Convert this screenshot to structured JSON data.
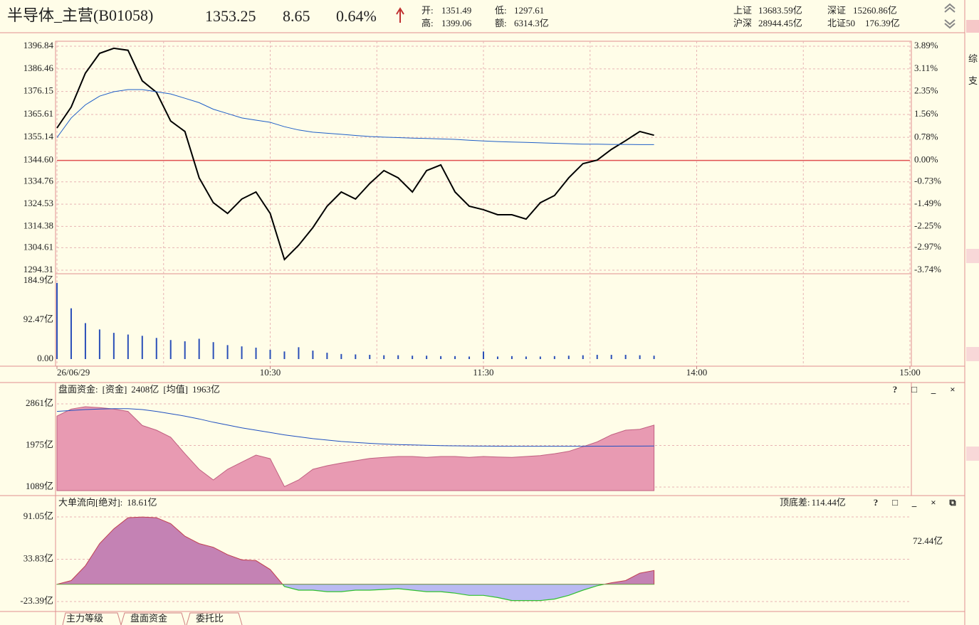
{
  "header": {
    "name": "半导体_主营(B01058)",
    "price": "1353.25",
    "change": "8.65",
    "pct": "0.64%",
    "open_label": "开:",
    "open": "1351.49",
    "low_label": "低:",
    "low": "1297.61",
    "high_label": "高:",
    "high": "1399.06",
    "amount_label": "额:",
    "amount": "6314.3亿",
    "indices": [
      {
        "name": "上证",
        "value": "13683.59亿"
      },
      {
        "name": "深证",
        "value": "15260.86亿"
      },
      {
        "name": "沪深",
        "value": "28944.45亿"
      },
      {
        "name": "北证50",
        "value": "176.39亿"
      }
    ]
  },
  "sidebar": [
    "综",
    "支"
  ],
  "tabs": [
    "主力等级",
    "盘面资金",
    "委托比"
  ],
  "chart_data": [
    {
      "type": "line",
      "x": [
        0,
        4,
        8,
        12,
        16,
        20,
        24,
        28,
        32,
        36,
        40,
        44,
        48,
        52,
        56,
        60,
        64,
        68,
        72,
        76,
        80,
        84,
        88,
        92,
        96,
        100,
        104,
        108,
        112,
        116,
        120,
        124,
        128,
        132,
        136,
        140,
        144,
        148,
        152,
        156,
        160,
        164,
        168
      ],
      "xlim": [
        0,
        240
      ],
      "xticks": [
        {
          "value": 0,
          "label": "26/06/29"
        },
        {
          "value": 60,
          "label": "10:30"
        },
        {
          "value": 120,
          "label": "11:30"
        },
        {
          "value": 180,
          "label": "14:00"
        },
        {
          "value": 240,
          "label": "15:00"
        }
      ],
      "xminor_ticks": [
        30,
        90,
        150,
        210
      ],
      "series": [
        {
          "color": "#000000",
          "values": [
            1359.4,
            1369,
            1384.5,
            1393.6,
            1395.9,
            1395.0,
            1381,
            1375.7,
            1362.6,
            1357.8,
            1336.6,
            1325.2,
            1320.3,
            1326.9,
            1330.1,
            1320.3,
            1299.2,
            1305.7,
            1313.8,
            1323.6,
            1330.1,
            1326.9,
            1334.0,
            1339.9,
            1336.6,
            1330.1,
            1339.9,
            1342.5,
            1330.1,
            1323.6,
            1322.0,
            1319.7,
            1319.7,
            1317.7,
            1325.2,
            1328.5,
            1336.6,
            1343.1,
            1344.7,
            1349.6,
            1353.6,
            1357.8,
            1356.1
          ]
        },
        {
          "color": "#1f5fc8",
          "values": [
            1355,
            1364,
            1370,
            1374,
            1376,
            1377,
            1377,
            1376,
            1375,
            1373,
            1371,
            1368,
            1366,
            1364,
            1363,
            1362,
            1360,
            1358.5,
            1357.5,
            1357,
            1356.5,
            1356,
            1355.5,
            1355.2,
            1355,
            1354.8,
            1354.6,
            1354.4,
            1354.2,
            1353.8,
            1353.5,
            1353.2,
            1353,
            1352.8,
            1352.6,
            1352.4,
            1352.2,
            1352,
            1352,
            1351.9,
            1351.9,
            1351.8,
            1351.8
          ]
        }
      ],
      "ylim": [
        1294.31,
        1396.84
      ],
      "yticks": [
        1396.84,
        1386.46,
        1376.15,
        1365.61,
        1355.14,
        {
          "value": 1344.6,
          "label": "1344.60"
        },
        1334.76,
        1324.53,
        1314.38,
        1304.61,
        1294.31
      ],
      "y2lim": [
        -3.74,
        3.89
      ],
      "y2ticks": [
        {
          "value": 3.89,
          "label": "3.89%"
        },
        {
          "value": 3.11,
          "label": "3.11%"
        },
        {
          "value": 2.35,
          "label": "2.35%"
        },
        {
          "value": 1.56,
          "label": "1.56%"
        },
        {
          "value": 0.78,
          "label": "0.78%"
        },
        {
          "value": 0,
          "label": "0.00%"
        },
        {
          "value": -0.73,
          "label": "-0.73%"
        },
        {
          "value": -1.49,
          "label": "-1.49%"
        },
        {
          "value": -2.25,
          "label": "-2.25%"
        },
        {
          "value": -2.97,
          "label": "-2.97%"
        },
        {
          "value": -3.74,
          "label": "-3.74%"
        }
      ],
      "grid": true,
      "axis_color": "#7a1f1f",
      "axis2_color": "#a03030"
    },
    {
      "type": "bar",
      "x": [
        0,
        4,
        8,
        12,
        16,
        20,
        24,
        28,
        32,
        36,
        40,
        44,
        48,
        52,
        56,
        60,
        64,
        68,
        72,
        76,
        80,
        84,
        88,
        92,
        96,
        100,
        104,
        108,
        112,
        116,
        120,
        124,
        128,
        132,
        136,
        140,
        144,
        148,
        152,
        156,
        160,
        164,
        168
      ],
      "xlim": [
        0,
        240
      ],
      "values": [
        180,
        120,
        85,
        70,
        62,
        58,
        55,
        50,
        45,
        42,
        48,
        40,
        33,
        30,
        27,
        22,
        18,
        28,
        20,
        15,
        12,
        11,
        10,
        9,
        9,
        8,
        8,
        7,
        7,
        6,
        18,
        6,
        7,
        6,
        6,
        7,
        8,
        9,
        10,
        10,
        10,
        9,
        8
      ],
      "color": "#2a4fb8",
      "ylim": [
        0,
        184.9
      ],
      "yticks": [
        {
          "value": 184.9,
          "label": "184.9亿"
        },
        {
          "value": 92.47,
          "label": "92.47亿"
        },
        {
          "value": 0,
          "label": "0.00"
        }
      ],
      "grid": false,
      "axis_color": "#2060c0"
    },
    {
      "type": "area",
      "title": "盘面资金:",
      "annotations": [
        {
          "text": "[资金]",
          "color": "#c8407a"
        },
        {
          "text": "2408亿",
          "color": "#222222"
        },
        {
          "text": "[均值]",
          "color": "#2050c0"
        },
        {
          "text": "1963亿",
          "color": "#222222"
        }
      ],
      "controls": [
        "?",
        "□",
        "_",
        "×"
      ],
      "x": [
        0,
        4,
        8,
        12,
        16,
        20,
        24,
        28,
        32,
        36,
        40,
        44,
        48,
        52,
        56,
        60,
        64,
        68,
        72,
        76,
        80,
        84,
        88,
        92,
        96,
        100,
        104,
        108,
        112,
        116,
        120,
        124,
        128,
        132,
        136,
        140,
        144,
        148,
        152,
        156,
        160,
        164,
        168
      ],
      "xlim": [
        0,
        240
      ],
      "series": [
        {
          "color": "#c06080",
          "fill": "#e89ab2",
          "values": [
            2600,
            2750,
            2800,
            2780,
            2750,
            2700,
            2400,
            2300,
            2150,
            1800,
            1467,
            1240,
            1467,
            1620,
            1770,
            1694,
            1100,
            1240,
            1467,
            1543,
            1600,
            1650,
            1700,
            1720,
            1740,
            1740,
            1720,
            1740,
            1740,
            1720,
            1740,
            1730,
            1720,
            1740,
            1760,
            1800,
            1850,
            1950,
            2050,
            2200,
            2300,
            2320,
            2408
          ]
        },
        {
          "color": "#2050c0",
          "values": [
            2700,
            2720,
            2740,
            2750,
            2760,
            2760,
            2740,
            2700,
            2650,
            2600,
            2540,
            2470,
            2410,
            2350,
            2300,
            2250,
            2200,
            2160,
            2120,
            2090,
            2060,
            2040,
            2020,
            2005,
            1995,
            1985,
            1978,
            1972,
            1968,
            1965,
            1962,
            1960,
            1958,
            1958,
            1958,
            1958,
            1958,
            1959,
            1960,
            1960,
            1961,
            1962,
            1963
          ]
        }
      ],
      "ylim": [
        1089,
        2861
      ],
      "yticks": [
        {
          "value": 2861,
          "label": "2861亿"
        },
        {
          "value": 1975,
          "label": "1975亿"
        },
        {
          "value": 1089,
          "label": "1089亿"
        }
      ],
      "grid": true,
      "axis_color": "#2060c0"
    },
    {
      "type": "area",
      "title": "大单流向[绝对]:",
      "annotations": [
        {
          "text": "18.61亿",
          "color": "#222222"
        }
      ],
      "right_annotations": [
        {
          "text": "顶底差:",
          "color": "#222222"
        },
        {
          "text": "114.44亿",
          "color": "#c02020"
        }
      ],
      "side_label": "72.44亿",
      "controls": [
        "?",
        "□",
        "_",
        "×",
        "⧉"
      ],
      "x": [
        0,
        4,
        8,
        12,
        16,
        20,
        24,
        28,
        32,
        36,
        40,
        44,
        48,
        52,
        56,
        60,
        64,
        68,
        72,
        76,
        80,
        84,
        88,
        92,
        96,
        100,
        104,
        108,
        112,
        116,
        120,
        124,
        128,
        132,
        136,
        140,
        144,
        148,
        152,
        156,
        160,
        164,
        168
      ],
      "xlim": [
        0,
        240
      ],
      "series": [
        {
          "color": "#c04050",
          "fill": "#c482b4",
          "negative_color": "#30c030",
          "negative_fill": "#babaf2",
          "values": [
            0,
            5,
            25,
            55,
            75,
            90,
            91,
            90,
            82,
            65,
            55,
            50,
            40,
            33,
            32,
            20,
            -3,
            -8,
            -8,
            -10,
            -10,
            -8,
            -8,
            -7,
            -6,
            -8,
            -10,
            -10,
            -12,
            -15,
            -15,
            -18,
            -22,
            -22,
            -22,
            -20,
            -15,
            -8,
            -2,
            2,
            5,
            15,
            18.61
          ]
        }
      ],
      "ylim": [
        -23.39,
        91.05
      ],
      "yticks": [
        {
          "value": 91.05,
          "label": "91.05亿"
        },
        {
          "value": 33.83,
          "label": "33.83亿"
        },
        {
          "value": -23.39,
          "label": "-23.39亿"
        }
      ],
      "grid": true,
      "axis_color": "#2060c0"
    }
  ]
}
